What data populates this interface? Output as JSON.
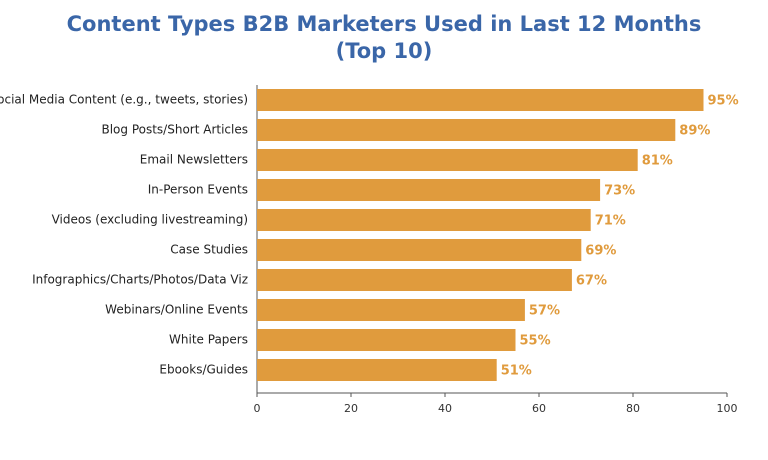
{
  "chart_data": {
    "type": "hbar",
    "title": "Content Types B2B Marketers Used in Last 12 Months",
    "subtitle": "(Top 10)",
    "categories": [
      "Social Media Content (e.g., tweets, stories)",
      "Blog Posts/Short Articles",
      "Email Newsletters",
      "In-Person Events",
      "Videos (excluding livestreaming)",
      "Case Studies",
      "Infographics/Charts/Photos/Data Viz",
      "Webinars/Online Events",
      "White Papers",
      "Ebooks/Guides"
    ],
    "values": [
      95,
      89,
      81,
      73,
      71,
      69,
      67,
      57,
      55,
      51
    ],
    "value_labels": [
      "95%",
      "89%",
      "81%",
      "73%",
      "71%",
      "69%",
      "67%",
      "57%",
      "55%",
      "51%"
    ],
    "color": "#e09b3d",
    "xlim": [
      0,
      100
    ],
    "xticks": [
      0,
      20,
      40,
      60,
      80,
      100
    ],
    "grid": false
  }
}
